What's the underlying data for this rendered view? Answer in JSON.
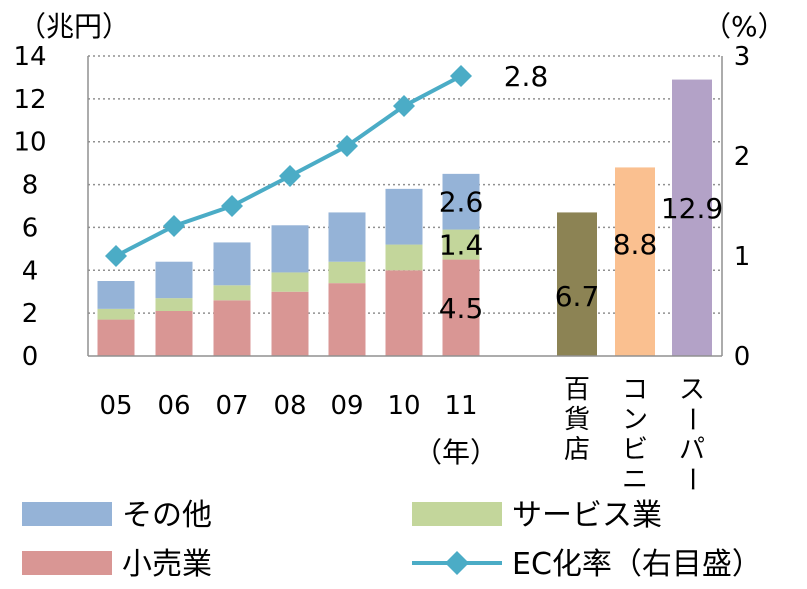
{
  "chart_data": {
    "type": "bar",
    "left_unit": "（兆円）",
    "right_unit": "（%）",
    "x_unit": "（年）",
    "left_ylim": [
      0,
      14
    ],
    "left_ticks": [
      "0",
      "2",
      "4",
      "6",
      "8",
      "10",
      "12",
      "14"
    ],
    "right_ylim": [
      0,
      3
    ],
    "right_ticks": [
      "0",
      "1",
      "2",
      "3"
    ],
    "grid": "horizontal dotted",
    "years": [
      "05",
      "06",
      "07",
      "08",
      "09",
      "10",
      "11"
    ],
    "stack_series": [
      {
        "name": "小売業",
        "color": "#d99694",
        "values": [
          1.7,
          2.1,
          2.6,
          3.0,
          3.4,
          4.0,
          4.5
        ]
      },
      {
        "name": "サービス業",
        "color": "#c3d69b",
        "values": [
          0.5,
          0.6,
          0.7,
          0.9,
          1.0,
          1.2,
          1.4
        ]
      },
      {
        "name": "その他",
        "color": "#95b3d7",
        "values": [
          1.3,
          1.7,
          2.0,
          2.2,
          2.3,
          2.6,
          2.6
        ]
      }
    ],
    "stack_labels_last": [
      "4.5",
      "1.4",
      "2.6"
    ],
    "ec_rate": {
      "name": "EC化率（右目盛）",
      "color": "#4bacc6",
      "values": [
        1.0,
        1.3,
        1.5,
        1.8,
        2.1,
        2.5,
        2.8
      ],
      "last_label": "2.8"
    },
    "compare_bars": [
      {
        "name": "百貨店",
        "value": 6.7,
        "label": "6.7",
        "color": "#8c8354"
      },
      {
        "name": "コンビニ",
        "value": 8.8,
        "label": "8.8",
        "color": "#fac090"
      },
      {
        "name": "スーパー",
        "value": 12.9,
        "label": "12.9",
        "color": "#b3a2c7"
      }
    ],
    "legend": [
      {
        "name": "その他",
        "kind": "box",
        "color": "#95b3d7"
      },
      {
        "name": "サービス業",
        "kind": "box",
        "color": "#c3d69b"
      },
      {
        "name": "小売業",
        "kind": "box",
        "color": "#d99694"
      },
      {
        "name": "EC化率（右目盛）",
        "kind": "line",
        "color": "#4bacc6"
      }
    ]
  }
}
